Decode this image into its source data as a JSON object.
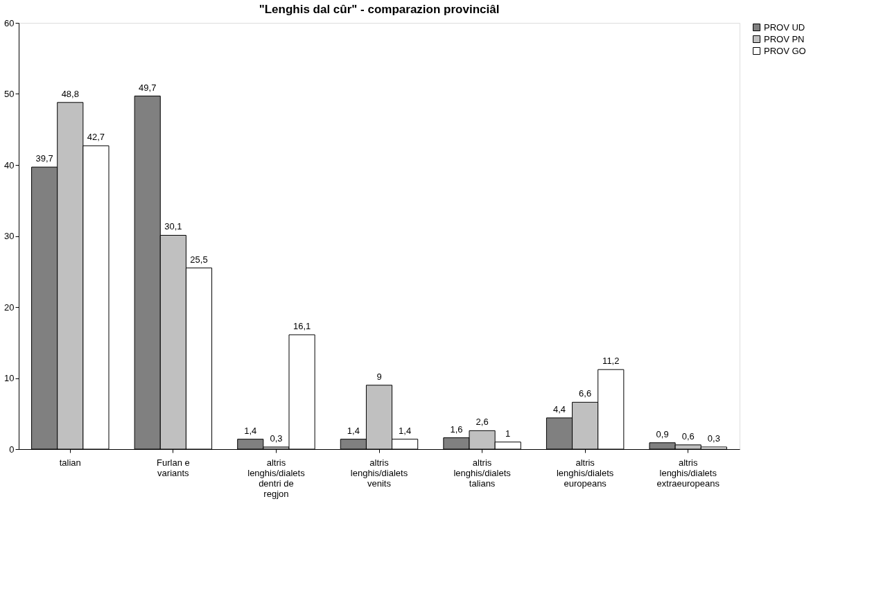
{
  "chart_data": {
    "type": "bar",
    "title": "\"Lenghis dal cûr\" - comparazion provinciâl",
    "categories": [
      "talian",
      "Furlan e variants",
      "altris lenghis/dialets dentri de  regjon",
      "altris lenghis/dialets venits",
      "altris lenghis/dialets talians",
      "altris lenghis/dialets europeans",
      "altris lenghis/dialets extraeuropeans"
    ],
    "series": [
      {
        "name": "PROV UD",
        "color": "#808080",
        "values": [
          39.7,
          49.7,
          1.4,
          1.4,
          1.6,
          4.4,
          0.9
        ],
        "value_labels": [
          "39,7",
          "49,7",
          "1,4",
          "1,4",
          "1,6",
          "4,4",
          "0,9"
        ]
      },
      {
        "name": "PROV PN",
        "color": "#c0c0c0",
        "values": [
          48.8,
          30.1,
          0.3,
          9,
          2.6,
          6.6,
          0.6
        ],
        "value_labels": [
          "48,8",
          "30,1",
          "0,3",
          "9",
          "2,6",
          "6,6",
          "0,6"
        ]
      },
      {
        "name": "PROV GO",
        "color": "#ffffff",
        "values": [
          42.7,
          25.5,
          16.1,
          1.4,
          1,
          11.2,
          0.3
        ],
        "value_labels": [
          "42,7",
          "25,5",
          "16,1",
          "1,4",
          "1",
          "11,2",
          "0,3"
        ]
      }
    ],
    "ylim": [
      0,
      60
    ],
    "yticks": [
      0,
      10,
      20,
      30,
      40,
      50,
      60
    ],
    "grid": false,
    "legend": "right"
  }
}
